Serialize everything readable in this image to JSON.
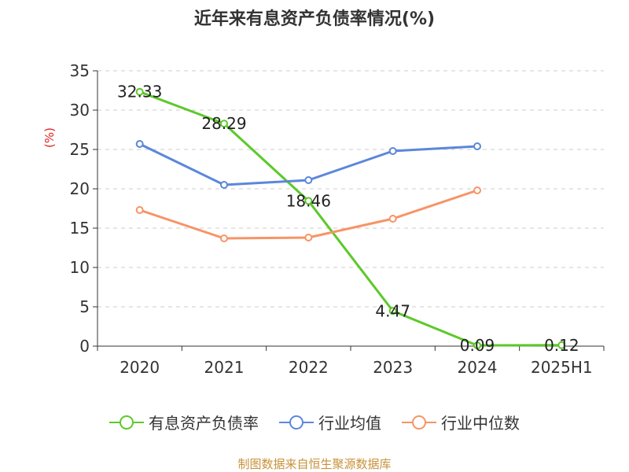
{
  "chart_data": {
    "type": "line",
    "title": "近年来有息资产负债率情况(%)",
    "ylabel": "(%)",
    "categories": [
      "2020",
      "2021",
      "2022",
      "2023",
      "2024",
      "2025H1"
    ],
    "ylim": [
      0,
      35
    ],
    "yticks": [
      0,
      5,
      10,
      15,
      20,
      25,
      30,
      35
    ],
    "grid": true,
    "legend_position": "bottom",
    "series": [
      {
        "name": "有息资产负债率",
        "color": "#5cc92a",
        "values": [
          32.33,
          28.29,
          18.46,
          4.47,
          0.09,
          0.12
        ],
        "labels": [
          "32.33",
          "28.29",
          "18.46",
          "4.47",
          "0.09",
          "0.12"
        ]
      },
      {
        "name": "行业均值",
        "color": "#5b87db",
        "values": [
          25.7,
          20.5,
          21.1,
          24.8,
          25.4,
          null
        ]
      },
      {
        "name": "行业中位数",
        "color": "#f79466",
        "values": [
          17.3,
          13.7,
          13.8,
          16.2,
          19.8,
          null
        ]
      }
    ]
  },
  "source_text": "制图数据来自恒生聚源数据库"
}
